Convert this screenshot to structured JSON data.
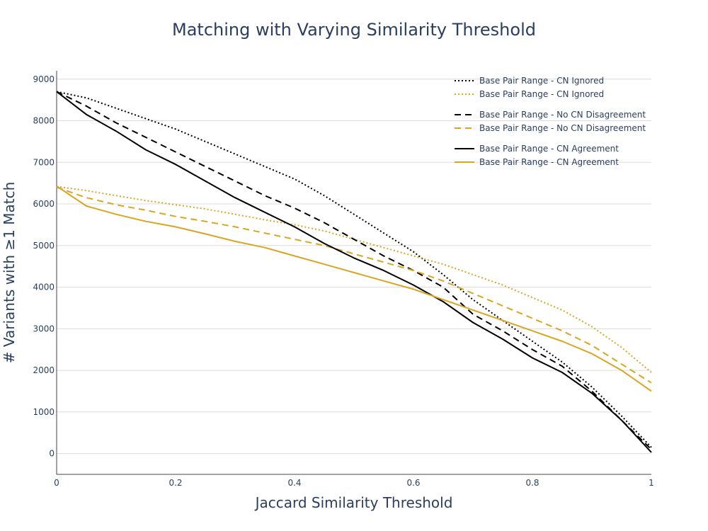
{
  "chart_data": {
    "type": "line",
    "title": "Matching with Varying Similarity Threshold",
    "xlabel": "Jaccard Similarity Threshold",
    "ylabel": "# Variants with ≥1 Match",
    "xlim": [
      0,
      1
    ],
    "ylim": [
      -500,
      9200
    ],
    "x_ticks": [
      0,
      0.2,
      0.4,
      0.6,
      0.8,
      1
    ],
    "x_tick_labels": [
      "0",
      "0.2",
      "0.4",
      "0.6",
      "0.8",
      "1"
    ],
    "y_ticks": [
      0,
      1000,
      2000,
      3000,
      4000,
      5000,
      6000,
      7000,
      8000,
      9000
    ],
    "y_tick_labels": [
      "0",
      "1000",
      "2000",
      "3000",
      "4000",
      "5000",
      "6000",
      "7000",
      "8000",
      "9000"
    ],
    "grid": "horizontal",
    "legend_position": "top-right",
    "colors": {
      "black": "#000000",
      "gold": "#DAA520"
    },
    "x": [
      0,
      0.05,
      0.1,
      0.15,
      0.2,
      0.25,
      0.3,
      0.35,
      0.4,
      0.45,
      0.5,
      0.55,
      0.6,
      0.65,
      0.7,
      0.75,
      0.8,
      0.85,
      0.9,
      0.95,
      1.0
    ],
    "series": [
      {
        "name": "Base Pair Range - CN Ignored",
        "color": "#000000",
        "dash": "dot",
        "group": 0,
        "values": [
          8700,
          8550,
          8300,
          8050,
          7800,
          7500,
          7200,
          6900,
          6600,
          6200,
          5750,
          5300,
          4850,
          4300,
          3700,
          3200,
          2700,
          2200,
          1600,
          900,
          150
        ]
      },
      {
        "name": "Base Pair Range - CN Ignored",
        "color": "#DAA520",
        "dash": "dot",
        "group": 0,
        "values": [
          6420,
          6320,
          6200,
          6080,
          5980,
          5880,
          5750,
          5620,
          5500,
          5350,
          5150,
          4950,
          4750,
          4550,
          4300,
          4050,
          3750,
          3450,
          3050,
          2550,
          1950
        ]
      },
      {
        "name": "Base Pair Range - No CN Disagreement",
        "color": "#000000",
        "dash": "dash",
        "group": 1,
        "values": [
          8700,
          8350,
          7950,
          7600,
          7250,
          6900,
          6550,
          6200,
          5900,
          5550,
          5150,
          4750,
          4400,
          4000,
          3350,
          2950,
          2500,
          2100,
          1500,
          800,
          100
        ]
      },
      {
        "name": "Base Pair Range - No CN Disagreement",
        "color": "#DAA520",
        "dash": "dash",
        "group": 1,
        "values": [
          6400,
          6150,
          5980,
          5850,
          5700,
          5580,
          5450,
          5300,
          5150,
          5000,
          4800,
          4600,
          4400,
          4150,
          3850,
          3550,
          3250,
          2950,
          2600,
          2150,
          1700
        ]
      },
      {
        "name": "Base Pair Range - CN Agreement",
        "color": "#000000",
        "dash": "solid",
        "group": 2,
        "values": [
          8700,
          8150,
          7750,
          7300,
          6950,
          6550,
          6150,
          5800,
          5450,
          5050,
          4700,
          4400,
          4050,
          3650,
          3150,
          2750,
          2300,
          1950,
          1450,
          800,
          30
        ]
      },
      {
        "name": "Base Pair Range - CN Agreement",
        "color": "#DAA520",
        "dash": "solid",
        "group": 2,
        "values": [
          6430,
          5950,
          5750,
          5580,
          5450,
          5280,
          5100,
          4950,
          4750,
          4550,
          4350,
          4150,
          3950,
          3700,
          3450,
          3200,
          2950,
          2700,
          2400,
          2000,
          1500
        ]
      }
    ]
  }
}
